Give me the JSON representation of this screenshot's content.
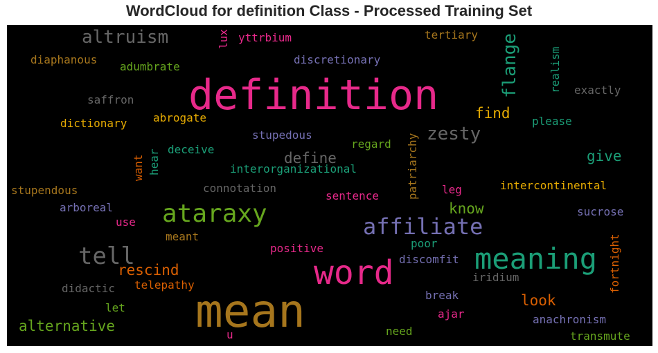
{
  "chart_data": {
    "type": "wordcloud",
    "title": "WordCloud for definition Class - Processed Training Set",
    "background": "#000000",
    "words": [
      {
        "text": "definition",
        "color": "#e7298a"
      },
      {
        "text": "mean",
        "color": "#a6761d"
      },
      {
        "text": "word",
        "color": "#e7298a"
      },
      {
        "text": "meaning",
        "color": "#1b9e77"
      },
      {
        "text": "ataraxy",
        "color": "#66a61e"
      },
      {
        "text": "affiliate",
        "color": "#7570b3"
      },
      {
        "text": "tell",
        "color": "#666666"
      },
      {
        "text": "altruism",
        "color": "#666666"
      },
      {
        "text": "flange",
        "color": "#1b9e77"
      },
      {
        "text": "zesty",
        "color": "#666666"
      },
      {
        "text": "define",
        "color": "#666666"
      },
      {
        "text": "rescind",
        "color": "#d95f02"
      },
      {
        "text": "alternative",
        "color": "#66a61e"
      },
      {
        "text": "find",
        "color": "#e6ab02"
      },
      {
        "text": "give",
        "color": "#1b9e77"
      },
      {
        "text": "look",
        "color": "#d95f02"
      },
      {
        "text": "know",
        "color": "#66a61e"
      },
      {
        "text": "tertiary",
        "color": "#a6761d"
      },
      {
        "text": "lux",
        "color": "#e7298a"
      },
      {
        "text": "yttrbium",
        "color": "#e7298a"
      },
      {
        "text": "diaphanous",
        "color": "#a6761d"
      },
      {
        "text": "adumbrate",
        "color": "#66a61e"
      },
      {
        "text": "discretionary",
        "color": "#7570b3"
      },
      {
        "text": "realism",
        "color": "#1b9e77"
      },
      {
        "text": "exactly",
        "color": "#666666"
      },
      {
        "text": "saffron",
        "color": "#666666"
      },
      {
        "text": "dictionary",
        "color": "#e6ab02"
      },
      {
        "text": "abrogate",
        "color": "#e6ab02"
      },
      {
        "text": "please",
        "color": "#1b9e77"
      },
      {
        "text": "stupedous",
        "color": "#7570b3"
      },
      {
        "text": "patriarchy",
        "color": "#a6761d"
      },
      {
        "text": "deceive",
        "color": "#1b9e77"
      },
      {
        "text": "regard",
        "color": "#66a61e"
      },
      {
        "text": "hear",
        "color": "#1b9e77"
      },
      {
        "text": "want",
        "color": "#d95f02"
      },
      {
        "text": "interorganizational",
        "color": "#1b9e77"
      },
      {
        "text": "stupendous",
        "color": "#a6761d"
      },
      {
        "text": "connotation",
        "color": "#666666"
      },
      {
        "text": "leg",
        "color": "#e7298a"
      },
      {
        "text": "intercontinental",
        "color": "#e6ab02"
      },
      {
        "text": "sentence",
        "color": "#e7298a"
      },
      {
        "text": "arboreal",
        "color": "#7570b3"
      },
      {
        "text": "sucrose",
        "color": "#7570b3"
      },
      {
        "text": "use",
        "color": "#e7298a"
      },
      {
        "text": "meant",
        "color": "#a6761d"
      },
      {
        "text": "poor",
        "color": "#1b9e77"
      },
      {
        "text": "positive",
        "color": "#e7298a"
      },
      {
        "text": "fortnight",
        "color": "#d95f02"
      },
      {
        "text": "discomfit",
        "color": "#7570b3"
      },
      {
        "text": "iridium",
        "color": "#666666"
      },
      {
        "text": "didactic",
        "color": "#666666"
      },
      {
        "text": "telepathy",
        "color": "#d95f02"
      },
      {
        "text": "break",
        "color": "#7570b3"
      },
      {
        "text": "let",
        "color": "#66a61e"
      },
      {
        "text": "ajar",
        "color": "#e7298a"
      },
      {
        "text": "anachronism",
        "color": "#7570b3"
      },
      {
        "text": "u",
        "color": "#e7298a"
      },
      {
        "text": "need",
        "color": "#66a61e"
      },
      {
        "text": "transmute",
        "color": "#66a61e"
      }
    ]
  }
}
